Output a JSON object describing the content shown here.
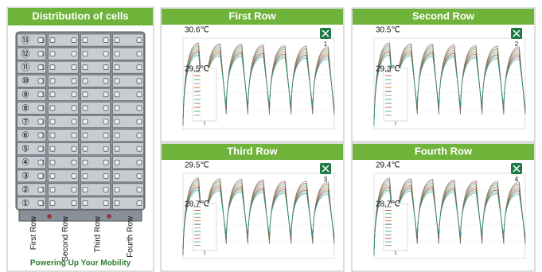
{
  "left_panel": {
    "title": "Distribution of cells",
    "cell_numbers": [
      "⑬",
      "⑫",
      "⑪",
      "⑩",
      "⑨",
      "⑧",
      "⑦",
      "⑥",
      "⑤",
      "④",
      "③",
      "②",
      "①"
    ],
    "column_labels": [
      "First Row",
      "Second Row",
      "Third Row",
      "Fourth Row"
    ],
    "slogan": "Powering Up Your Mobility"
  },
  "panels": [
    {
      "title": "First Row",
      "max_temp": "30.6℃",
      "min_temp": "29.5℃",
      "file_number": "1"
    },
    {
      "title": "Second Row",
      "max_temp": "30.5℃",
      "min_temp": "29.3℃",
      "file_number": "2"
    },
    {
      "title": "Third Row",
      "max_temp": "29.5℃",
      "min_temp": "28.7℃",
      "file_number": "3"
    },
    {
      "title": "Fourth Row",
      "max_temp": "29.4℃",
      "min_temp": "28.7℃",
      "file_number": "4"
    }
  ]
}
